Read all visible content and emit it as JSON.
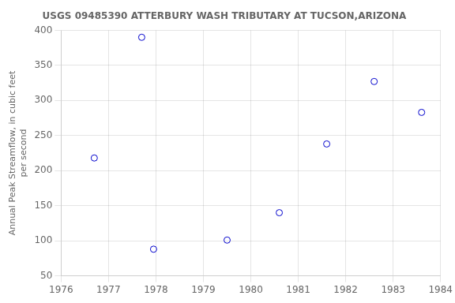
{
  "chart_data": {
    "type": "scatter",
    "title": "USGS 09485390 ATTERBURY WASH TRIBUTARY AT TUCSON,ARIZONA",
    "ylabel": [
      "Annual Peak Streamflow, in cubic feet",
      "per second"
    ],
    "x": [
      1976.7,
      1977.7,
      1977.95,
      1979.5,
      1980.6,
      1981.6,
      1982.6,
      1983.6
    ],
    "values": [
      218,
      390,
      88,
      101,
      140,
      238,
      327,
      283
    ],
    "xlim": [
      1976,
      1984
    ],
    "ylim": [
      50,
      400
    ],
    "xticks": [
      1976,
      1977,
      1978,
      1979,
      1980,
      1981,
      1982,
      1983,
      1984
    ],
    "yticks": [
      50,
      100,
      150,
      200,
      250,
      300,
      350,
      400
    ],
    "color": "#0000cc",
    "marker": "circle",
    "grid": true
  }
}
